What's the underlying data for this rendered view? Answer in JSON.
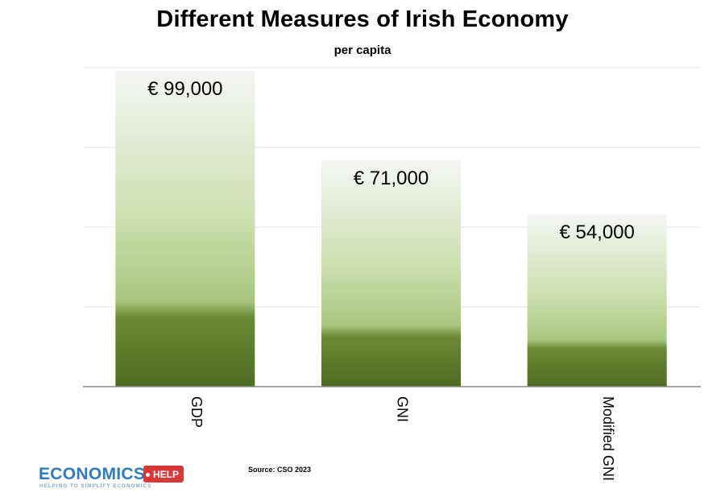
{
  "chart_data": {
    "type": "bar",
    "title": "Different Measures of Irish Economy",
    "subtitle": "per capita",
    "categories": [
      "GDP",
      "GNI",
      "Modified GNI"
    ],
    "values": [
      99000,
      71000,
      54000
    ],
    "data_labels": [
      "€ 99,000",
      "€ 71,000",
      "€ 54,000"
    ],
    "ylim": [
      0,
      100000
    ],
    "y_gridlines": [
      25000,
      50000,
      75000,
      100000
    ],
    "grid": true,
    "legend": "none",
    "colors": {
      "bar_dark": "#4d6d23",
      "bar_mid": "#b9d296",
      "bar_light": "#f4f6f4",
      "grid": "#e6e6e6",
      "axis": "#888888"
    }
  },
  "footer": {
    "source": "Source: CSO 2023",
    "logo_word": "ECONOMICS",
    "logo_tag": "HELP",
    "logo_tagline": "HELPING TO SIMPLIFY ECONOMICS"
  }
}
